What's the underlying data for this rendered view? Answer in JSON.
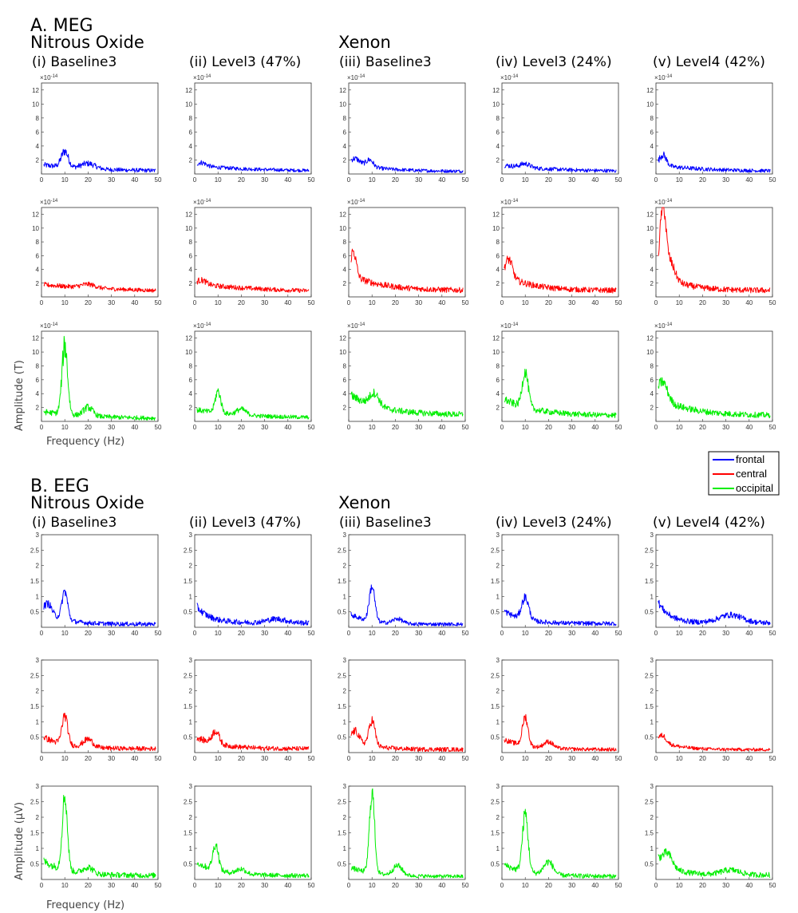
{
  "colors": {
    "frontal": "#0000ff",
    "central": "#ff0000",
    "occipital": "#00ee00"
  },
  "sectionA": {
    "title": "A. MEG",
    "group1": "Nitrous Oxide",
    "group2": "Xenon"
  },
  "sectionB": {
    "title": "B. EEG",
    "group1": "Nitrous Oxide",
    "group2": "Xenon"
  },
  "conditions": [
    "(i) Baseline3",
    "(ii) Level3 (47%)",
    "(iii) Baseline3",
    "(iv) Level3 (24%)",
    "(v) Level4 (42%)"
  ],
  "legend": [
    "frontal",
    "central",
    "occipital"
  ],
  "meg_exponent": "×10",
  "meg_exponent_power": "-14",
  "chart_data": [
    {
      "type": "line",
      "panel": "A. MEG",
      "xlabel": "Frequency (Hz)",
      "ylabel": "Amplitude (T)",
      "xlim": [
        0,
        50
      ],
      "ylim": [
        0,
        13
      ],
      "scale": "×10^-14",
      "xticks": [
        0,
        10,
        20,
        30,
        40,
        50
      ],
      "yticks": [
        2,
        4,
        6,
        8,
        10,
        12
      ],
      "ytick_labels": [
        "2",
        "4",
        "6",
        "8",
        "10",
        "12"
      ],
      "grid": false,
      "legend_position": "right",
      "profiles": [
        [
          {
            "series": "frontal",
            "base": 0.9,
            "floor": 0.3,
            "decay": 0.018,
            "noise": 0.9,
            "peaks": [
              [
                10,
                2.2,
                1.5
              ],
              [
                20,
                0.7,
                3
              ]
            ]
          },
          {
            "series": "frontal",
            "base": 0.8,
            "floor": 0.3,
            "decay": 0.015,
            "noise": 0.7,
            "peaks": [
              [
                3,
                0.5,
                2
              ]
            ]
          },
          {
            "series": "frontal",
            "base": 1.2,
            "floor": 0.3,
            "decay": 0.03,
            "noise": 0.8,
            "peaks": [
              [
                3,
                0.8,
                2
              ],
              [
                9,
                1.0,
                1.5
              ]
            ]
          },
          {
            "series": "frontal",
            "base": 0.9,
            "floor": 0.3,
            "decay": 0.02,
            "noise": 0.8,
            "peaks": [
              [
                10,
                0.5,
                2
              ]
            ]
          },
          {
            "series": "frontal",
            "base": 0.9,
            "floor": 0.3,
            "decay": 0.02,
            "noise": 0.8,
            "peaks": [
              [
                3,
                1.5,
                1.5
              ]
            ]
          }
        ],
        [
          {
            "series": "central",
            "base": 1.2,
            "floor": 0.5,
            "decay": 0.01,
            "noise": 0.8,
            "peaks": [
              [
                20,
                0.5,
                3
              ]
            ]
          },
          {
            "series": "central",
            "base": 1.3,
            "floor": 0.5,
            "decay": 0.012,
            "noise": 0.9,
            "peaks": [
              [
                3,
                0.6,
                2
              ]
            ]
          },
          {
            "series": "central",
            "base": 2.4,
            "floor": 0.8,
            "decay": 0.03,
            "noise": 1.3,
            "peaks": [
              [
                2,
                3.5,
                1.2
              ]
            ]
          },
          {
            "series": "central",
            "base": 2.5,
            "floor": 0.8,
            "decay": 0.035,
            "noise": 1.3,
            "peaks": [
              [
                3,
                2.5,
                1.5
              ]
            ]
          },
          {
            "series": "central",
            "base": 3.0,
            "floor": 0.8,
            "decay": 0.04,
            "noise": 1.4,
            "peaks": [
              [
                3,
                9.5,
                1.2
              ],
              [
                6,
                2.5,
                2
              ]
            ]
          }
        ],
        [
          {
            "series": "occipital",
            "base": 1.0,
            "floor": 0.3,
            "decay": 0.02,
            "noise": 1.0,
            "peaks": [
              [
                10,
                9.5,
                1.2
              ],
              [
                20,
                1.2,
                2
              ]
            ]
          },
          {
            "series": "occipital",
            "base": 1.2,
            "floor": 0.4,
            "decay": 0.02,
            "noise": 0.9,
            "peaks": [
              [
                10,
                3.0,
                1.2
              ],
              [
                20,
                0.8,
                2
              ]
            ]
          },
          {
            "series": "occipital",
            "base": 3.0,
            "floor": 0.8,
            "decay": 0.03,
            "noise": 1.4,
            "peaks": [
              [
                11,
                1.8,
                2
              ]
            ]
          },
          {
            "series": "occipital",
            "base": 2.5,
            "floor": 0.7,
            "decay": 0.03,
            "noise": 1.3,
            "peaks": [
              [
                10,
                5.0,
                1.3
              ]
            ]
          },
          {
            "series": "occipital",
            "base": 2.8,
            "floor": 0.7,
            "decay": 0.03,
            "noise": 1.4,
            "peaks": [
              [
                3,
                2.5,
                2
              ]
            ]
          }
        ]
      ]
    },
    {
      "type": "line",
      "panel": "B. EEG",
      "xlabel": "Frequency (Hz)",
      "ylabel": "Amplitude (µV)",
      "xlim": [
        0,
        50
      ],
      "ylim": [
        0,
        3
      ],
      "xticks": [
        0,
        10,
        20,
        30,
        40,
        50
      ],
      "yticks": [
        0.5,
        1,
        1.5,
        2,
        2.5,
        3
      ],
      "ytick_labels": [
        "0.5",
        "1",
        "1.5",
        "2",
        "2.5",
        "3"
      ],
      "grid": false,
      "legend_position": "right",
      "profiles": [
        [
          {
            "series": "frontal",
            "base": 0.5,
            "floor": 0.08,
            "decay": 0.05,
            "noise": 0.25,
            "peaks": [
              [
                10,
                0.9,
                1.2
              ],
              [
                3,
                0.3,
                1.5
              ]
            ]
          },
          {
            "series": "frontal",
            "base": 0.6,
            "floor": 0.12,
            "decay": 0.07,
            "noise": 0.3,
            "peaks": [
              [
                35,
                0.12,
                4
              ]
            ]
          },
          {
            "series": "frontal",
            "base": 0.35,
            "floor": 0.08,
            "decay": 0.05,
            "noise": 0.2,
            "peaks": [
              [
                10,
                1.1,
                1.2
              ],
              [
                21,
                0.15,
                2
              ]
            ]
          },
          {
            "series": "frontal",
            "base": 0.45,
            "floor": 0.1,
            "decay": 0.05,
            "noise": 0.25,
            "peaks": [
              [
                10,
                0.7,
                1.5
              ]
            ]
          },
          {
            "series": "frontal",
            "base": 0.8,
            "floor": 0.12,
            "decay": 0.08,
            "noise": 0.3,
            "peaks": [
              [
                32,
                0.25,
                5
              ]
            ]
          }
        ],
        [
          {
            "series": "central",
            "base": 0.4,
            "floor": 0.1,
            "decay": 0.04,
            "noise": 0.25,
            "peaks": [
              [
                10,
                0.9,
                1.2
              ],
              [
                20,
                0.25,
                2
              ]
            ]
          },
          {
            "series": "central",
            "base": 0.4,
            "floor": 0.1,
            "decay": 0.04,
            "noise": 0.25,
            "peaks": [
              [
                9,
                0.4,
                1.5
              ]
            ]
          },
          {
            "series": "central",
            "base": 0.4,
            "floor": 0.08,
            "decay": 0.05,
            "noise": 0.25,
            "peaks": [
              [
                10,
                0.8,
                1.3
              ],
              [
                3,
                0.3,
                1.5
              ]
            ]
          },
          {
            "series": "central",
            "base": 0.35,
            "floor": 0.08,
            "decay": 0.04,
            "noise": 0.2,
            "peaks": [
              [
                10,
                0.9,
                1.2
              ],
              [
                20,
                0.2,
                2
              ]
            ]
          },
          {
            "series": "central",
            "base": 0.35,
            "floor": 0.08,
            "decay": 0.05,
            "noise": 0.18,
            "peaks": [
              [
                3,
                0.2,
                1.5
              ]
            ]
          }
        ],
        [
          {
            "series": "occipital",
            "base": 0.5,
            "floor": 0.1,
            "decay": 0.04,
            "noise": 0.3,
            "peaks": [
              [
                10,
                2.3,
                1.1
              ],
              [
                20,
                0.2,
                2
              ]
            ]
          },
          {
            "series": "occipital",
            "base": 0.45,
            "floor": 0.1,
            "decay": 0.04,
            "noise": 0.25,
            "peaks": [
              [
                9,
                0.8,
                1.2
              ],
              [
                20,
                0.15,
                2
              ]
            ]
          },
          {
            "series": "occipital",
            "base": 0.3,
            "floor": 0.08,
            "decay": 0.04,
            "noise": 0.2,
            "peaks": [
              [
                10,
                2.5,
                1.1
              ],
              [
                21,
                0.3,
                2
              ]
            ]
          },
          {
            "series": "occipital",
            "base": 0.4,
            "floor": 0.08,
            "decay": 0.04,
            "noise": 0.25,
            "peaks": [
              [
                10,
                1.8,
                1.2
              ],
              [
                20,
                0.4,
                2
              ]
            ]
          },
          {
            "series": "occipital",
            "base": 0.6,
            "floor": 0.12,
            "decay": 0.06,
            "noise": 0.3,
            "peaks": [
              [
                5,
                0.4,
                2
              ],
              [
                32,
                0.15,
                4
              ]
            ]
          }
        ]
      ]
    }
  ]
}
